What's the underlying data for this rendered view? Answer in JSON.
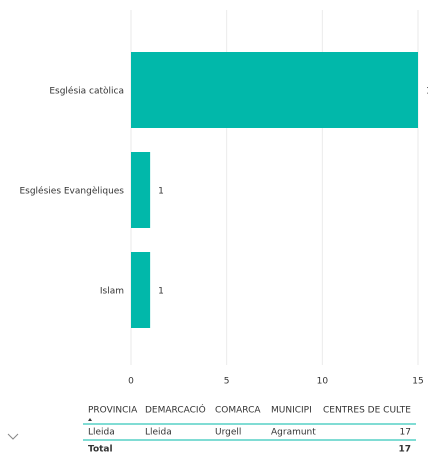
{
  "chart_data": {
    "type": "bar",
    "orientation": "horizontal",
    "categories": [
      "Església catòlica",
      "Esglésies Evangèliques",
      "Islam"
    ],
    "values": [
      15,
      1,
      1
    ],
    "color": "#01b8aa",
    "xlim": [
      0,
      15
    ],
    "xticks": [
      0,
      5,
      10,
      15
    ],
    "grid": true
  },
  "table": {
    "columns": [
      "PROVINCIA",
      "DEMARCACIÓ",
      "COMARCA",
      "MUNICIPI",
      "CENTRES DE CULTE"
    ],
    "rows": [
      [
        "Lleida",
        "Lleida",
        "Urgell",
        "Agramunt",
        "17"
      ]
    ],
    "total": {
      "label": "Total",
      "value": "17"
    }
  }
}
